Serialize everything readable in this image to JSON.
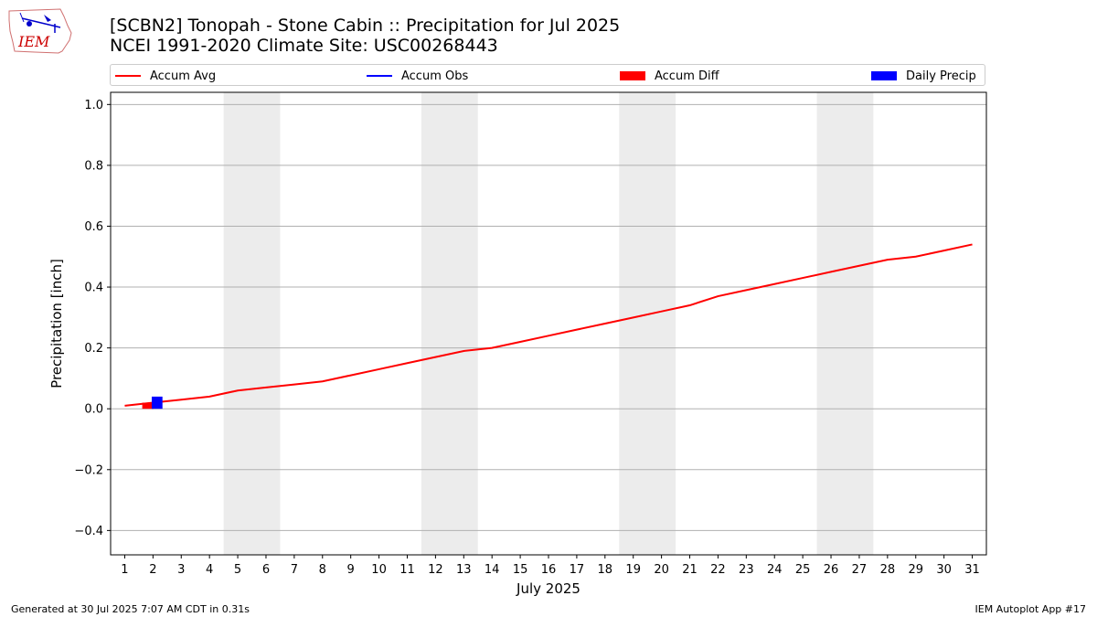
{
  "header": {
    "title_line1": "[SCBN2] Tonopah - Stone Cabin :: Precipitation for Jul 2025",
    "title_line2": "NCEI 1991-2020 Climate Site: USC00268443",
    "logo_text": "IEM"
  },
  "legend": {
    "items": [
      {
        "label": "Accum Avg",
        "kind": "line",
        "color": "#ff0000"
      },
      {
        "label": "Accum Obs",
        "kind": "line",
        "color": "#0000ff"
      },
      {
        "label": "Accum Diff",
        "kind": "patch",
        "color": "#ff0000"
      },
      {
        "label": "Daily Precip",
        "kind": "patch",
        "color": "#0000ff"
      }
    ]
  },
  "footer": {
    "left": "Generated at 30 Jul 2025 7:07 AM CDT in 0.31s",
    "right": "IEM Autoplot App #17"
  },
  "chart_data": {
    "type": "line",
    "xlabel": "July 2025",
    "ylabel": "Precipitation [inch]",
    "x": [
      1,
      2,
      3,
      4,
      5,
      6,
      7,
      8,
      9,
      10,
      11,
      12,
      13,
      14,
      15,
      16,
      17,
      18,
      19,
      20,
      21,
      22,
      23,
      24,
      25,
      26,
      27,
      28,
      29,
      30,
      31
    ],
    "xlim": [
      0.5,
      31.5
    ],
    "ylim": [
      -0.48,
      1.04
    ],
    "yticks": [
      -0.4,
      -0.2,
      0.0,
      0.2,
      0.4,
      0.6,
      0.8,
      1.0
    ],
    "ytick_labels": [
      "−0.4",
      "−0.2",
      "0.0",
      "0.2",
      "0.4",
      "0.6",
      "0.8",
      "1.0"
    ],
    "grid": "horizontal",
    "weekend_bands": [
      [
        4.5,
        6.5
      ],
      [
        11.5,
        13.5
      ],
      [
        18.5,
        20.5
      ],
      [
        25.5,
        27.5
      ]
    ],
    "band_color": "#ececec",
    "series": [
      {
        "name": "Accum Avg",
        "type": "line",
        "color": "#ff0000",
        "values": [
          0.01,
          0.02,
          0.03,
          0.04,
          0.06,
          0.07,
          0.08,
          0.09,
          0.11,
          0.13,
          0.15,
          0.17,
          0.19,
          0.2,
          0.22,
          0.24,
          0.26,
          0.28,
          0.3,
          0.32,
          0.34,
          0.37,
          0.39,
          0.41,
          0.43,
          0.45,
          0.47,
          0.49,
          0.5,
          0.52,
          0.54
        ]
      },
      {
        "name": "Accum Diff",
        "type": "bar",
        "color": "#ff0000",
        "x": [
          2
        ],
        "values": [
          0.02
        ]
      },
      {
        "name": "Daily Precip",
        "type": "bar",
        "color": "#0000ff",
        "x": [
          2
        ],
        "values": [
          0.04
        ]
      }
    ]
  }
}
